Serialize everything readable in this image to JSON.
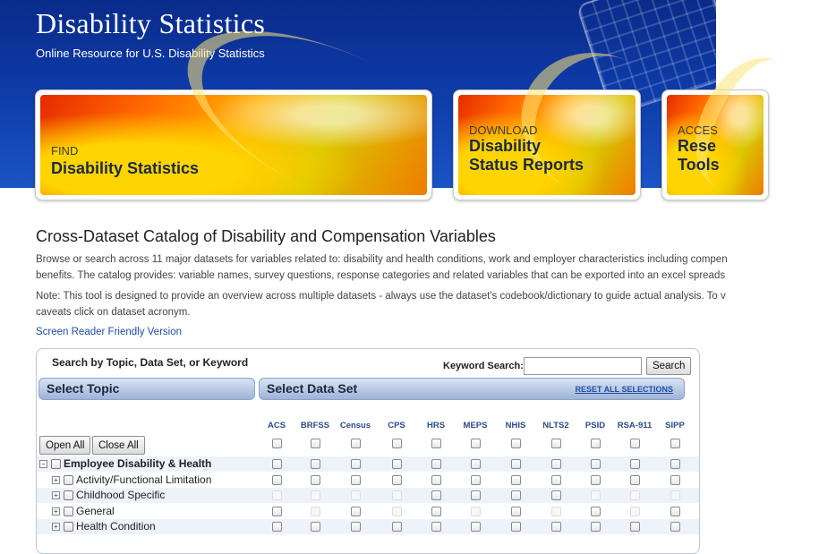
{
  "header": {
    "title": "Disability Statistics",
    "subtitle": "Online Resource for U.S. Disability Statistics"
  },
  "cards": [
    {
      "small": "FIND",
      "big": "Disability Statistics"
    },
    {
      "small": "DOWNLOAD",
      "big1": "Disability",
      "big2": "Status Reports"
    },
    {
      "small": "ACCES",
      "big1": "Rese",
      "big2": "Tools"
    }
  ],
  "main": {
    "heading": "Cross-Dataset Catalog of Disability and Compensation Variables",
    "para1_line1": "Browse or search across 11 major datasets for variables related to: disability and health conditions, work and employer characteristics including compen",
    "para1_line2": "benefits. The catalog provides: variable names, survey questions, response categories and related variables that can be exported into an excel spreads",
    "para2_line1": "Note: This tool is designed to provide an overview across multiple datasets - always use the dataset's codebook/dictionary to guide actual analysis. To v",
    "para2_line2": "caveats click on dataset acronym.",
    "screen_reader_link": "Screen Reader Friendly Version"
  },
  "panel": {
    "search_label": "Search by Topic, Data Set, or Keyword",
    "keyword_label": "Keyword Search:",
    "keyword_value": "",
    "search_button": "Search",
    "select_topic": "Select Topic",
    "select_dataset": "Select Data Set",
    "reset_link": "RESET ALL SELECTIONS",
    "open_all": "Open All",
    "close_all": "Close All",
    "datasets": [
      "ACS",
      "BRFSS",
      "Census",
      "CPS",
      "HRS",
      "MEPS",
      "NHIS",
      "NLTS2",
      "PSID",
      "RSA-911",
      "SIPP"
    ],
    "topics": [
      {
        "label": "Employee Disability & Health",
        "bold": true,
        "level": 0,
        "toggle": "minus",
        "enabled": [
          true,
          true,
          true,
          true,
          true,
          true,
          true,
          true,
          true,
          true,
          true
        ]
      },
      {
        "label": "Activity/Functional Limitation",
        "bold": false,
        "level": 1,
        "toggle": "plus",
        "enabled": [
          true,
          true,
          true,
          true,
          true,
          true,
          true,
          true,
          true,
          true,
          true
        ]
      },
      {
        "label": "Childhood Specific",
        "bold": false,
        "level": 1,
        "toggle": "plus",
        "enabled": [
          false,
          false,
          false,
          false,
          true,
          true,
          true,
          true,
          false,
          false,
          false
        ]
      },
      {
        "label": "General",
        "bold": false,
        "level": 1,
        "toggle": "plus",
        "enabled": [
          true,
          false,
          true,
          false,
          true,
          false,
          true,
          false,
          true,
          false,
          true
        ]
      },
      {
        "label": "Health Condition",
        "bold": false,
        "level": 1,
        "toggle": "plus",
        "enabled": [
          true,
          true,
          true,
          true,
          true,
          true,
          true,
          true,
          true,
          true,
          true
        ]
      }
    ]
  },
  "colors": {
    "header_bg": "#0d3aa6",
    "link": "#1d4fa3",
    "section_head": "#9fb3d8",
    "row_stripe": "#eef2fa"
  }
}
